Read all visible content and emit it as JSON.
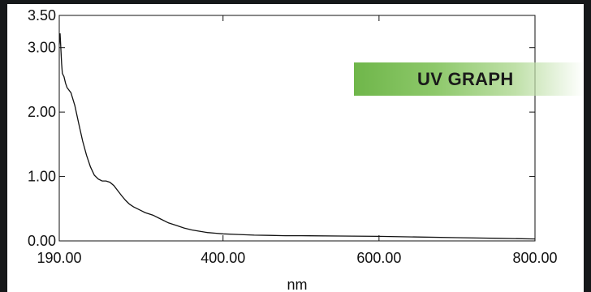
{
  "badge": {
    "label": "UV GRAPH",
    "color": "#6fb64a"
  },
  "chart_data": {
    "type": "line",
    "title": "",
    "xlabel": "nm",
    "ylabel": "",
    "xlim": [
      190,
      800
    ],
    "ylim": [
      0,
      3.5
    ],
    "x_ticks": [
      190,
      400,
      600,
      800
    ],
    "x_tick_labels": [
      "190.00",
      "400.00",
      "600.00",
      "800.00"
    ],
    "y_ticks": [
      0,
      1,
      2,
      3,
      3.5
    ],
    "y_tick_labels": [
      "0.00",
      "1.00",
      "2.00",
      "3.00",
      "3.50"
    ],
    "grid": false,
    "series": [
      {
        "color": "#111111",
        "x": [
          190,
          191,
          192,
          193,
          194,
          196,
          198,
          200,
          205,
          210,
          215,
          220,
          225,
          230,
          235,
          240,
          245,
          250,
          255,
          260,
          265,
          270,
          275,
          280,
          285,
          290,
          295,
          300,
          310,
          320,
          330,
          340,
          350,
          360,
          370,
          380,
          390,
          400,
          420,
          440,
          460,
          480,
          500,
          550,
          600,
          650,
          700,
          750,
          800
        ],
        "y": [
          3.05,
          3.22,
          3.0,
          2.75,
          2.6,
          2.55,
          2.45,
          2.38,
          2.3,
          2.1,
          1.82,
          1.55,
          1.33,
          1.15,
          1.02,
          0.96,
          0.93,
          0.93,
          0.91,
          0.86,
          0.78,
          0.7,
          0.63,
          0.57,
          0.53,
          0.5,
          0.47,
          0.44,
          0.4,
          0.34,
          0.28,
          0.24,
          0.2,
          0.17,
          0.15,
          0.13,
          0.12,
          0.11,
          0.1,
          0.09,
          0.085,
          0.08,
          0.08,
          0.075,
          0.07,
          0.06,
          0.05,
          0.04,
          0.03
        ]
      }
    ]
  }
}
